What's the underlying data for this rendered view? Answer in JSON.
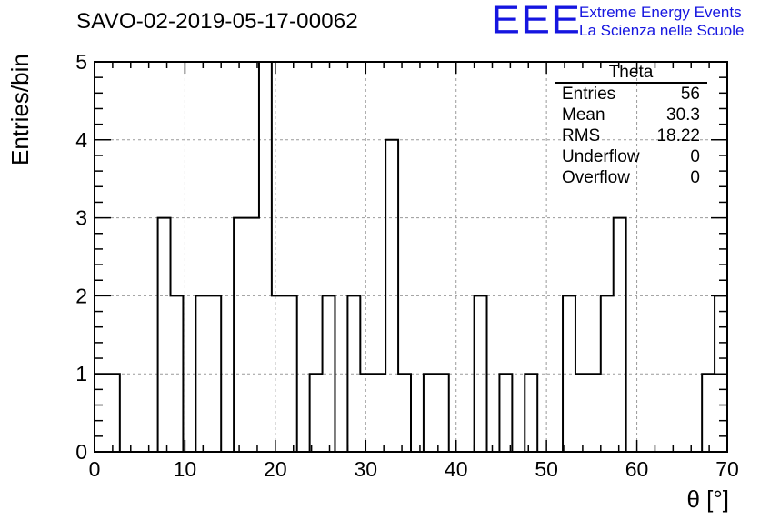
{
  "header": {
    "title": "SAVO-02-2019-05-17-00062",
    "logo_text": "EEE",
    "logo_line1": "Extreme Energy Events",
    "logo_line2": "La Scienza nelle Scuole",
    "logo_color": "#1515e0"
  },
  "stats_box": {
    "name": "Theta",
    "rows": [
      {
        "label": "Entries",
        "value": "56"
      },
      {
        "label": "Mean",
        "value": "30.3"
      },
      {
        "label": "RMS",
        "value": "18.22"
      },
      {
        "label": "Underflow",
        "value": "0"
      },
      {
        "label": "Overflow",
        "value": "0"
      }
    ]
  },
  "chart_data": {
    "type": "bar",
    "subtype": "histogram",
    "xlabel": "θ [°]",
    "ylabel": "Entries/bin",
    "xlim": [
      0,
      70
    ],
    "ylim": [
      0,
      5
    ],
    "x_ticks": [
      "0",
      "10",
      "20",
      "30",
      "40",
      "50",
      "60",
      "70"
    ],
    "y_ticks": [
      "0",
      "1",
      "2",
      "3",
      "4",
      "5"
    ],
    "grid": true,
    "bins": 50,
    "values": [
      1,
      1,
      0,
      0,
      0,
      3,
      2,
      0,
      2,
      2,
      0,
      3,
      3,
      5,
      2,
      2,
      0,
      1,
      2,
      0,
      2,
      1,
      1,
      4,
      1,
      0,
      1,
      1,
      0,
      0,
      2,
      0,
      1,
      0,
      1,
      0,
      0,
      2,
      1,
      1,
      2,
      3,
      0,
      0,
      0,
      0,
      0,
      0,
      1,
      2
    ]
  }
}
